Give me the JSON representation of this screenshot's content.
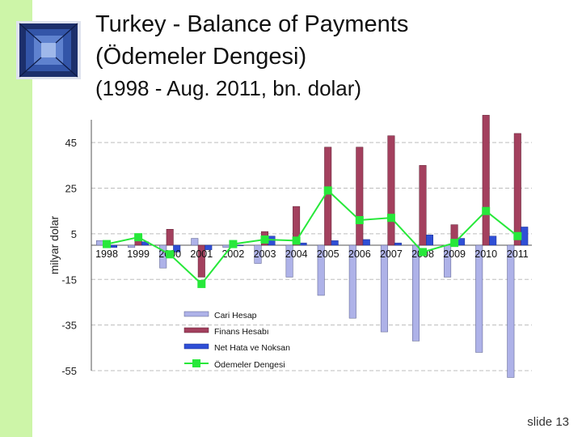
{
  "slide": {
    "title_line1": "Turkey - Balance of Payments",
    "title_line2": "(Ödemeler Dengesi)",
    "subtitle": "(1998 - Aug. 2011, bn. dolar)",
    "footer": "slide 13"
  },
  "colors": {
    "side_band": "#cdf5a8",
    "cari": "#aeb2e8",
    "finans": "#a3405e",
    "net_hata": "#2f4fd6",
    "odemeler": "#27e83a",
    "grid": "#bdbdbd"
  },
  "chart_data": {
    "type": "bar",
    "title": "",
    "xlabel": "",
    "ylabel": "milyar dolar",
    "ylim": [
      -55,
      55
    ],
    "yticks": [
      45,
      25,
      5,
      -15,
      -35,
      -55
    ],
    "grid": true,
    "legend_position": "bottom-center",
    "categories": [
      "1998",
      "1999",
      "2000",
      "2001",
      "2002",
      "2003",
      "2004",
      "2005",
      "2006",
      "2007",
      "2008",
      "2009",
      "2010",
      "2011"
    ],
    "series": [
      {
        "name": "Cari Hesap",
        "type": "bar",
        "values": [
          2,
          -1,
          -10,
          3,
          -1,
          -8,
          -14,
          -22,
          -32,
          -38,
          -42,
          -14,
          -47,
          -58
        ]
      },
      {
        "name": "Finans Hesabı",
        "type": "bar",
        "values": [
          0.5,
          3,
          7,
          -14,
          1,
          6,
          17,
          43,
          43,
          48,
          35,
          9,
          57,
          49
        ]
      },
      {
        "name": "Net Hata ve Noksan",
        "type": "bar",
        "values": [
          -1,
          1.5,
          -3,
          -2,
          0,
          4,
          1,
          2,
          2.5,
          1,
          4.5,
          3,
          4,
          8
        ]
      },
      {
        "name": "Ödemeler Dengesi",
        "type": "line",
        "values": [
          0.5,
          3.5,
          -4,
          -17,
          0.5,
          2.5,
          2,
          24,
          11,
          12,
          -3,
          1,
          15,
          4
        ]
      }
    ]
  }
}
